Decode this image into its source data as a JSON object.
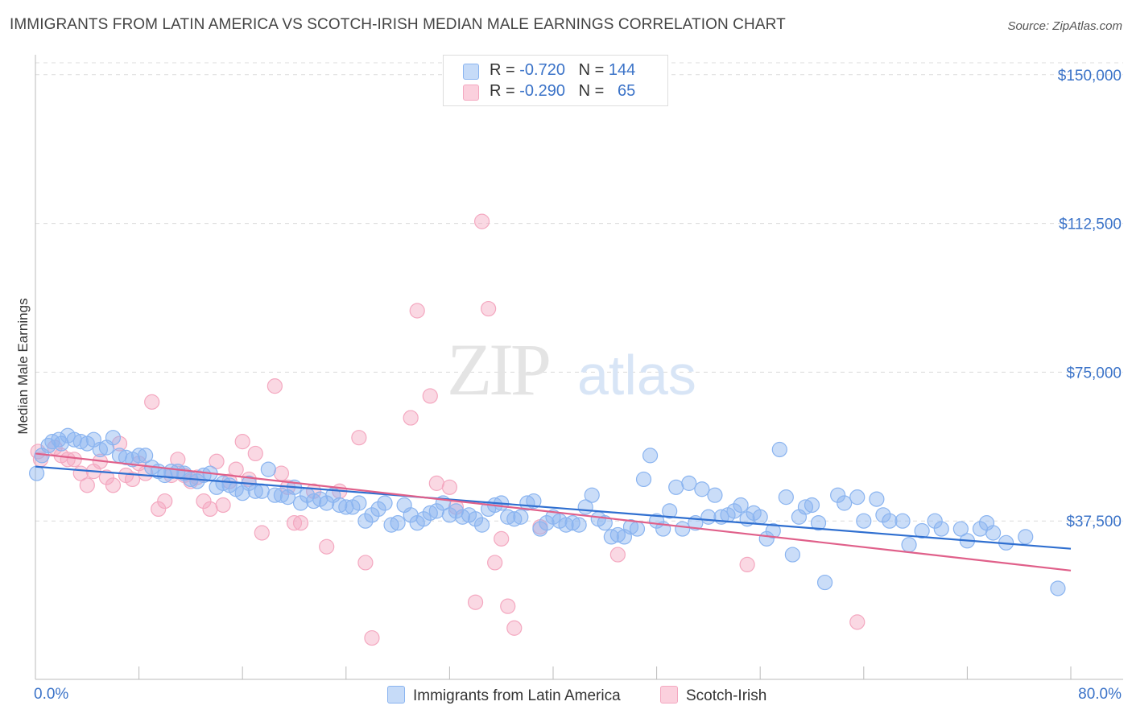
{
  "title": "IMMIGRANTS FROM LATIN AMERICA VS SCOTCH-IRISH MEDIAN MALE EARNINGS CORRELATION CHART",
  "source": "Source: ZipAtlas.com",
  "watermark": {
    "zip": "ZIP",
    "atlas": "atlas"
  },
  "legend": {
    "rows": [
      {
        "r_label": "R =",
        "r_value": "-0.720",
        "n_label": "N =",
        "n_value": "144",
        "color": "#8ab4f0"
      },
      {
        "r_label": "R =",
        "r_value": "-0.290",
        "n_label": "N =",
        "n_value": "65",
        "color": "#f4a8c0"
      }
    ]
  },
  "bottom_legend": [
    {
      "label": "Immigrants from Latin America",
      "color": "#8ab4f0"
    },
    {
      "label": "Scotch-Irish",
      "color": "#f4a8c0"
    }
  ],
  "chart_data": {
    "type": "scatter",
    "xlabel": "",
    "ylabel": "Median Male Earnings",
    "xlim": [
      0,
      80
    ],
    "ylim": [
      0,
      153000
    ],
    "x_tick_labels": [
      "0.0%",
      "80.0%"
    ],
    "y_ticks": [
      37500,
      75000,
      112500,
      150000
    ],
    "y_tick_labels": [
      "$37,500",
      "$75,000",
      "$112,500",
      "$150,000"
    ],
    "grid": true,
    "series": [
      {
        "name": "Immigrants from Latin America",
        "color": "#8ab4f0",
        "line_color": "#2f6fd0",
        "trend": {
          "x": [
            0,
            80
          ],
          "y": [
            51200,
            30500
          ]
        },
        "points": [
          [
            0.1,
            49500
          ],
          [
            0.5,
            54000
          ],
          [
            1,
            56500
          ],
          [
            1.3,
            57500
          ],
          [
            1.8,
            58000
          ],
          [
            2,
            57000
          ],
          [
            2.5,
            59000
          ],
          [
            3,
            58000
          ],
          [
            3.5,
            57500
          ],
          [
            4,
            57000
          ],
          [
            4.5,
            58000
          ],
          [
            5,
            55500
          ],
          [
            5.5,
            56000
          ],
          [
            6,
            58500
          ],
          [
            6.5,
            54000
          ],
          [
            7,
            53500
          ],
          [
            7.5,
            53000
          ],
          [
            8,
            54000
          ],
          [
            8.5,
            54000
          ],
          [
            9,
            51000
          ],
          [
            9.5,
            50000
          ],
          [
            10,
            49000
          ],
          [
            10.5,
            50000
          ],
          [
            11,
            50000
          ],
          [
            11.5,
            49500
          ],
          [
            12,
            48000
          ],
          [
            12.5,
            47500
          ],
          [
            13,
            49000
          ],
          [
            13.5,
            49500
          ],
          [
            14,
            46000
          ],
          [
            14.5,
            47000
          ],
          [
            15,
            46500
          ],
          [
            15.5,
            45500
          ],
          [
            16,
            44500
          ],
          [
            16.5,
            47000
          ],
          [
            17,
            45000
          ],
          [
            17.5,
            45000
          ],
          [
            18,
            50500
          ],
          [
            18.5,
            44000
          ],
          [
            19,
            44000
          ],
          [
            19.5,
            43500
          ],
          [
            20,
            46000
          ],
          [
            20.5,
            42000
          ],
          [
            21,
            44000
          ],
          [
            21.5,
            42500
          ],
          [
            22,
            43000
          ],
          [
            22.5,
            42000
          ],
          [
            23,
            44000
          ],
          [
            23.5,
            41500
          ],
          [
            24,
            41000
          ],
          [
            24.5,
            41000
          ],
          [
            25,
            42000
          ],
          [
            25.5,
            37500
          ],
          [
            26,
            39000
          ],
          [
            26.5,
            40500
          ],
          [
            27,
            42000
          ],
          [
            27.5,
            36500
          ],
          [
            28,
            37000
          ],
          [
            28.5,
            41500
          ],
          [
            29,
            39000
          ],
          [
            29.5,
            37000
          ],
          [
            30,
            38000
          ],
          [
            30.5,
            39500
          ],
          [
            31,
            40000
          ],
          [
            31.5,
            42000
          ],
          [
            32,
            39000
          ],
          [
            32.5,
            40000
          ],
          [
            33,
            38500
          ],
          [
            33.5,
            39000
          ],
          [
            34,
            38000
          ],
          [
            34.5,
            36500
          ],
          [
            35,
            40500
          ],
          [
            35.5,
            41500
          ],
          [
            36,
            42000
          ],
          [
            36.5,
            38500
          ],
          [
            37,
            38000
          ],
          [
            37.5,
            38500
          ],
          [
            38,
            42000
          ],
          [
            38.5,
            42500
          ],
          [
            39,
            35500
          ],
          [
            39.5,
            37000
          ],
          [
            40,
            38500
          ],
          [
            40.5,
            37500
          ],
          [
            41,
            36500
          ],
          [
            41.5,
            37000
          ],
          [
            42,
            36500
          ],
          [
            42.5,
            41000
          ],
          [
            43,
            44000
          ],
          [
            43.5,
            38000
          ],
          [
            44,
            37000
          ],
          [
            44.5,
            33500
          ],
          [
            45,
            34000
          ],
          [
            45.5,
            33500
          ],
          [
            46,
            36000
          ],
          [
            46.5,
            35500
          ],
          [
            47,
            48000
          ],
          [
            47.5,
            54000
          ],
          [
            48,
            37500
          ],
          [
            48.5,
            35500
          ],
          [
            49,
            40000
          ],
          [
            49.5,
            46000
          ],
          [
            50,
            35500
          ],
          [
            50.5,
            47000
          ],
          [
            51,
            37000
          ],
          [
            51.5,
            45500
          ],
          [
            52,
            38500
          ],
          [
            52.5,
            44000
          ],
          [
            53,
            38500
          ],
          [
            53.5,
            39000
          ],
          [
            54,
            40000
          ],
          [
            54.5,
            41500
          ],
          [
            55,
            38000
          ],
          [
            55.5,
            39500
          ],
          [
            56,
            38500
          ],
          [
            56.5,
            33000
          ],
          [
            57,
            35000
          ],
          [
            57.5,
            55500
          ],
          [
            58,
            43500
          ],
          [
            58.5,
            29000
          ],
          [
            59,
            38500
          ],
          [
            59.5,
            41000
          ],
          [
            60,
            41500
          ],
          [
            60.5,
            37000
          ],
          [
            61,
            22000
          ],
          [
            62,
            44000
          ],
          [
            62.5,
            42000
          ],
          [
            63.5,
            43500
          ],
          [
            64,
            37500
          ],
          [
            65,
            43000
          ],
          [
            65.5,
            39000
          ],
          [
            66,
            37500
          ],
          [
            67,
            37500
          ],
          [
            67.5,
            31500
          ],
          [
            68.5,
            35000
          ],
          [
            69.5,
            37500
          ],
          [
            70,
            35500
          ],
          [
            71.5,
            35500
          ],
          [
            72,
            32500
          ],
          [
            73,
            35500
          ],
          [
            73.5,
            37000
          ],
          [
            74,
            34500
          ],
          [
            75,
            32000
          ],
          [
            76.5,
            33500
          ],
          [
            79,
            20500
          ]
        ]
      },
      {
        "name": "Scotch-Irish",
        "color": "#f4a8c0",
        "line_color": "#e0608a",
        "trend": {
          "x": [
            0,
            80
          ],
          "y": [
            54500,
            25000
          ]
        },
        "points": [
          [
            0.2,
            55000
          ],
          [
            0.4,
            53000
          ],
          [
            1.5,
            56000
          ],
          [
            2,
            54000
          ],
          [
            2.5,
            53000
          ],
          [
            3,
            53000
          ],
          [
            3.5,
            49500
          ],
          [
            4,
            46500
          ],
          [
            4.5,
            50000
          ],
          [
            5,
            52500
          ],
          [
            5.5,
            48500
          ],
          [
            6,
            46500
          ],
          [
            6.5,
            57000
          ],
          [
            7,
            49000
          ],
          [
            7.5,
            48000
          ],
          [
            8,
            52000
          ],
          [
            8.5,
            49500
          ],
          [
            9,
            67500
          ],
          [
            9.5,
            40500
          ],
          [
            10,
            42500
          ],
          [
            10.5,
            49000
          ],
          [
            11,
            53000
          ],
          [
            11.5,
            49000
          ],
          [
            12,
            47500
          ],
          [
            12.5,
            48500
          ],
          [
            13,
            42500
          ],
          [
            13.5,
            40500
          ],
          [
            14,
            52500
          ],
          [
            14.5,
            41500
          ],
          [
            15,
            47500
          ],
          [
            15.5,
            50500
          ],
          [
            16,
            57500
          ],
          [
            16.5,
            48000
          ],
          [
            17,
            54500
          ],
          [
            17.5,
            34500
          ],
          [
            18.5,
            71500
          ],
          [
            19,
            49500
          ],
          [
            19.5,
            46000
          ],
          [
            20,
            37000
          ],
          [
            20.5,
            37000
          ],
          [
            21.5,
            45000
          ],
          [
            22.5,
            31000
          ],
          [
            23.5,
            45000
          ],
          [
            25,
            58500
          ],
          [
            25.5,
            27000
          ],
          [
            29,
            63500
          ],
          [
            29.5,
            90500
          ],
          [
            30.5,
            69000
          ],
          [
            31,
            47000
          ],
          [
            32,
            46000
          ],
          [
            32.5,
            41000
          ],
          [
            34,
            17000
          ],
          [
            34.5,
            113000
          ],
          [
            35,
            91000
          ],
          [
            35.5,
            27000
          ],
          [
            36,
            33000
          ],
          [
            36.5,
            16000
          ],
          [
            37,
            10500
          ],
          [
            45,
            29000
          ],
          [
            55,
            26500
          ],
          [
            63.5,
            12000
          ],
          [
            26,
            8000
          ],
          [
            39,
            36000
          ]
        ]
      }
    ]
  }
}
